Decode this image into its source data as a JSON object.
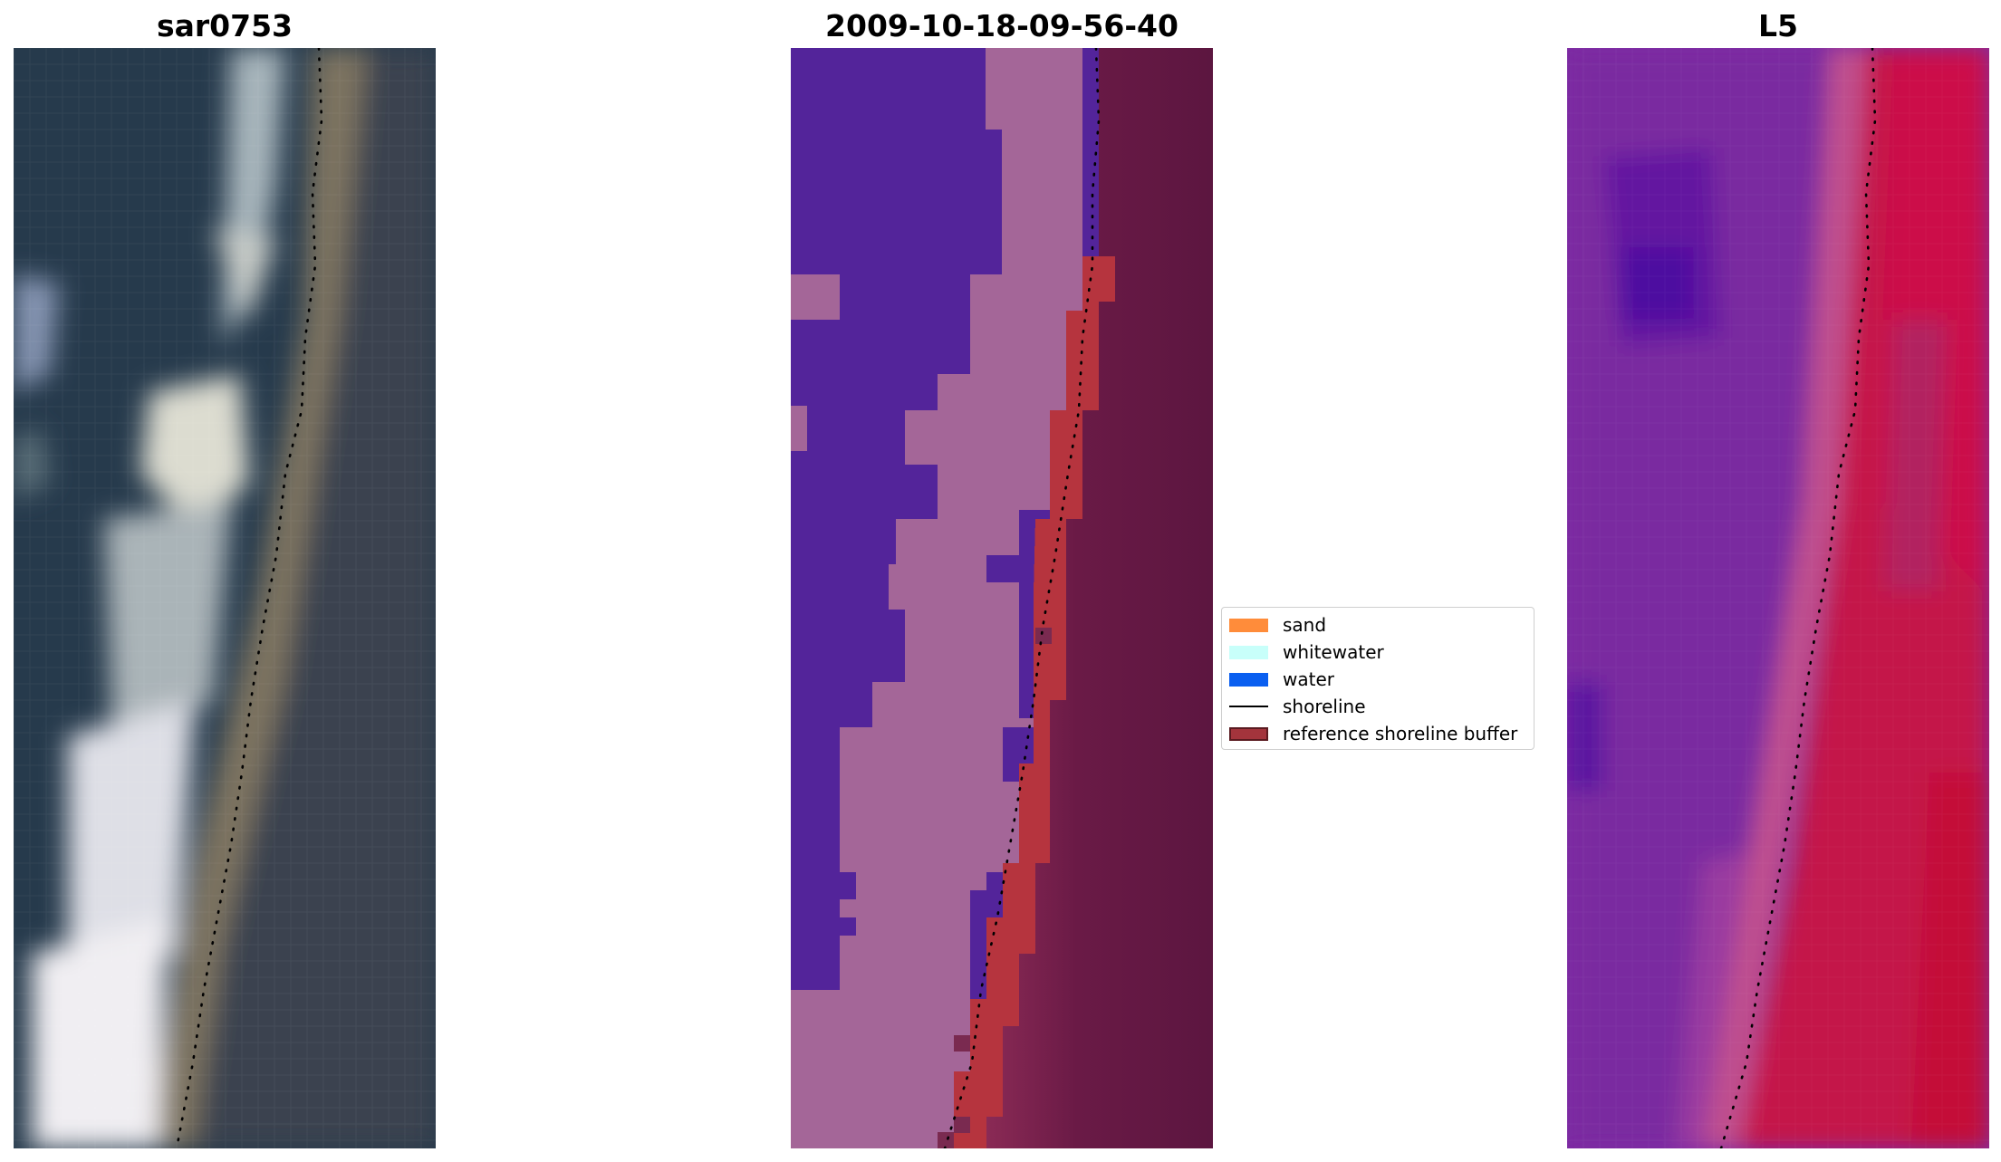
{
  "panels": {
    "left": {
      "title": "sar0753"
    },
    "middle": {
      "title": "2009-10-18-09-56-40"
    },
    "right": {
      "title": "L5"
    }
  },
  "legend": {
    "items": [
      {
        "label": "sand",
        "color": "#ff8c3a",
        "kind": "patch"
      },
      {
        "label": "whitewater",
        "color": "#c8fffa",
        "kind": "patch"
      },
      {
        "label": "water",
        "color": "#0a5ff0",
        "kind": "patch"
      },
      {
        "label": "shoreline",
        "color": "#000000",
        "kind": "line"
      },
      {
        "label": "reference shoreline buffer",
        "color": "#a3343c",
        "kind": "patch",
        "edge": "#5a1a20"
      }
    ]
  },
  "colors": {
    "ocean_dark": "#263a4c",
    "class_water": "#53249a",
    "class_sand": "#a46698",
    "buffer_red": "#b6343e",
    "land_maroon": "#6e1a48",
    "index_purple": "#7e2aa4",
    "index_red": "#c4144a"
  }
}
